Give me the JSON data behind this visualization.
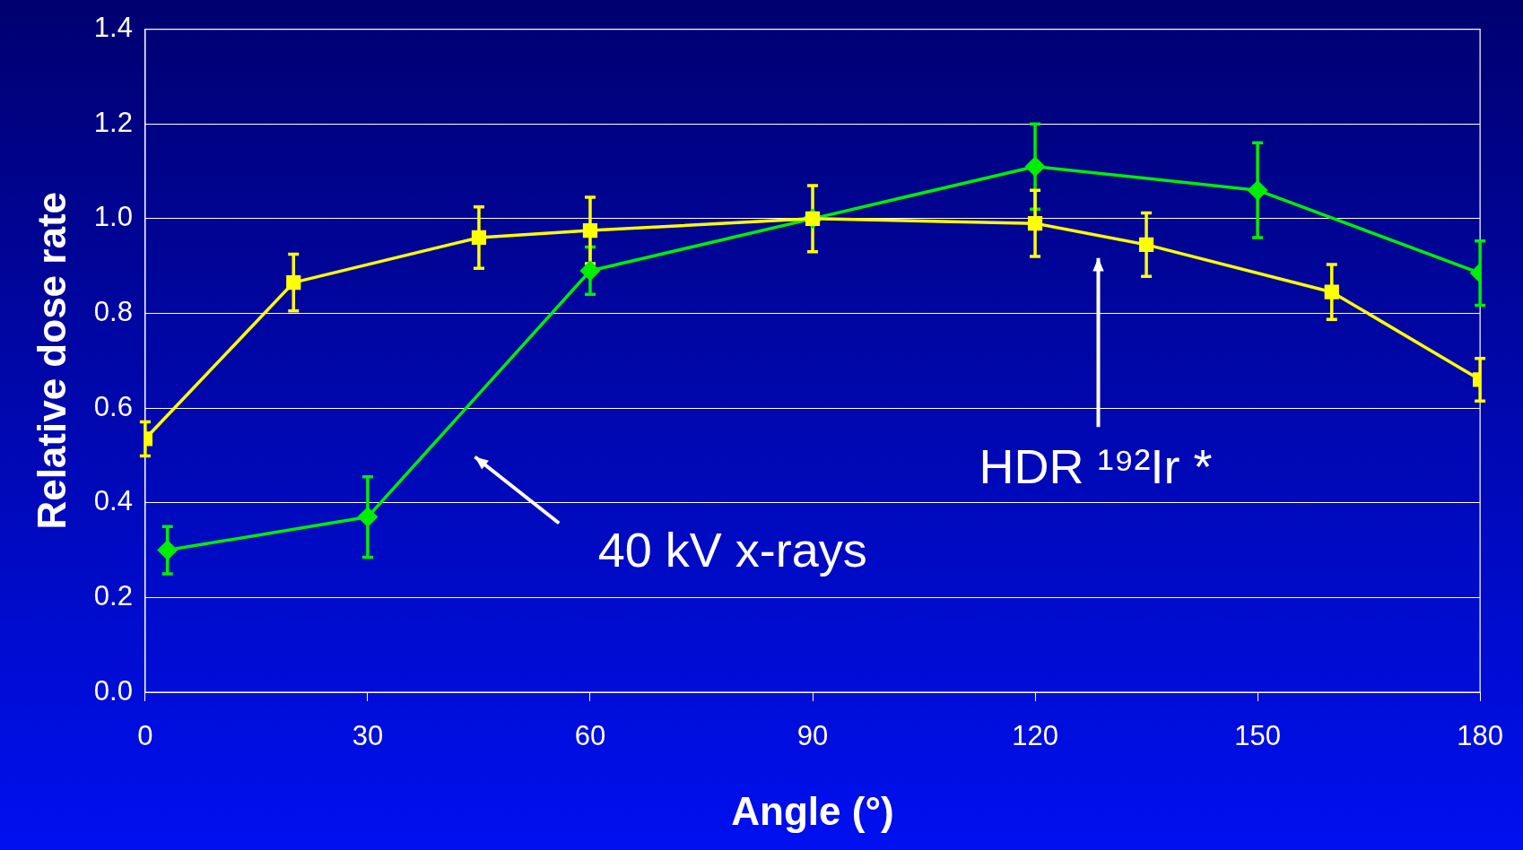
{
  "chart_data": {
    "type": "line",
    "xlabel": "Angle (°)",
    "ylabel": "Relative dose rate",
    "xlim": [
      0,
      180
    ],
    "xticks": [
      0,
      30,
      60,
      90,
      120,
      150,
      180
    ],
    "ylim": [
      0,
      1.4
    ],
    "yticks": [
      {
        "value": 0,
        "label": "0.0"
      },
      0.2,
      0.4,
      0.6,
      0.8,
      {
        "value": 1,
        "label": "1.0"
      },
      1.2,
      1.4
    ],
    "grid": "y",
    "legend": false,
    "line_style": "solid",
    "series": [
      {
        "color": "#00ee00",
        "marker": "diamond",
        "x": [
          3,
          30,
          60,
          90,
          120,
          150,
          180
        ],
        "values": [
          0.3,
          0.37,
          0.89,
          1.0,
          1.11,
          1.06,
          0.885
        ],
        "errors": [
          0.05,
          0.085,
          0.05,
          null,
          0.09,
          0.1,
          0.068
        ]
      },
      {
        "color": "#ffff00",
        "marker": "square",
        "x": [
          0,
          20,
          45,
          60,
          90,
          120,
          135,
          160,
          180
        ],
        "values": [
          0.535,
          0.865,
          0.96,
          0.975,
          1.0,
          0.99,
          0.945,
          0.845,
          0.66
        ],
        "errors": [
          0.036,
          0.06,
          0.065,
          0.07,
          0.07,
          0.07,
          0.067,
          0.058,
          0.045
        ]
      }
    ],
    "annotations": [
      "40 kV x-rays",
      "HDR ¹⁹²Ir *"
    ]
  }
}
